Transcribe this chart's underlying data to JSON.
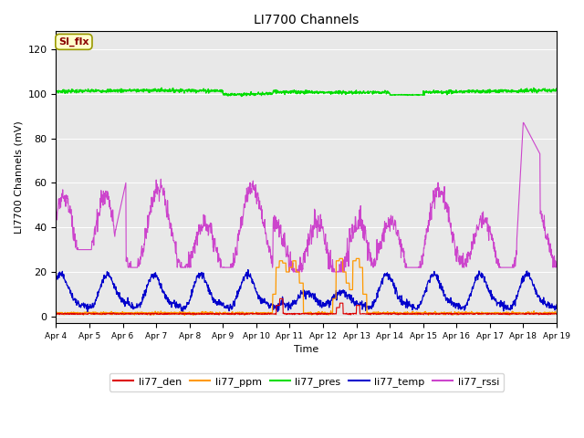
{
  "title": "LI7700 Channels",
  "xlabel": "Time",
  "ylabel": "LI7700 Channels (mV)",
  "ylim": [
    -3,
    128
  ],
  "yticks": [
    0,
    20,
    40,
    60,
    80,
    100,
    120
  ],
  "xlim": [
    0,
    15
  ],
  "xtick_labels": [
    "Apr 4",
    "Apr 5",
    "Apr 6",
    "Apr 7",
    "Apr 8",
    "Apr 9",
    "Apr 10",
    "Apr 11",
    "Apr 12",
    "Apr 13",
    "Apr 14",
    "Apr 15",
    "Apr 16",
    "Apr 17",
    "Apr 18",
    "Apr 19"
  ],
  "bg_color": "#e8e8e8",
  "legend_label": "SI_flx",
  "legend_bg": "#ffffcc",
  "legend_edge": "#999900",
  "line_colors": {
    "li77_den": "#dd0000",
    "li77_ppm": "#ff9900",
    "li77_pres": "#00dd00",
    "li77_temp": "#0000cc",
    "li77_rssi": "#cc44cc"
  }
}
